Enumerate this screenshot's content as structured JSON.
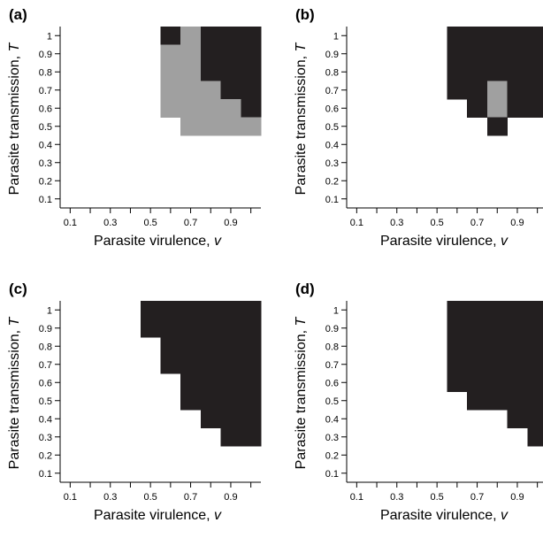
{
  "colors": {
    "white": "#ffffff",
    "gray": "#a0a0a0",
    "black": "#231f20",
    "axis": "#000000"
  },
  "chart_data": [
    {
      "type": "heatmap",
      "panel": "(a)",
      "xlabel": "Parasite virulence, ",
      "xlabel_var": "v",
      "ylabel": "Parasite transmission, ",
      "ylabel_var": "T",
      "x": [
        0.1,
        0.2,
        0.3,
        0.4,
        0.5,
        0.6,
        0.7,
        0.8,
        0.9,
        1.0
      ],
      "y": [
        0.1,
        0.2,
        0.3,
        0.4,
        0.5,
        0.6,
        0.7,
        0.8,
        0.9,
        1.0
      ],
      "x_tick_labels": [
        "0.1",
        "0.3",
        "0.5",
        "0.7",
        "0.9"
      ],
      "y_tick_labels": [
        "0.1",
        "0.2",
        "0.3",
        "0.4",
        "0.5",
        "0.6",
        "0.7",
        "0.8",
        "0.9",
        "1"
      ],
      "legend": "0 = white, 1 = gray, 2 = black",
      "grid_rows_top_to_bottom": [
        [
          0,
          0,
          0,
          0,
          0,
          2,
          1,
          2,
          2,
          2
        ],
        [
          0,
          0,
          0,
          0,
          0,
          1,
          1,
          2,
          2,
          2
        ],
        [
          0,
          0,
          0,
          0,
          0,
          1,
          1,
          2,
          2,
          2
        ],
        [
          0,
          0,
          0,
          0,
          0,
          1,
          1,
          1,
          2,
          2
        ],
        [
          0,
          0,
          0,
          0,
          0,
          1,
          1,
          1,
          1,
          2
        ],
        [
          0,
          0,
          0,
          0,
          0,
          0,
          1,
          1,
          1,
          1
        ],
        [
          0,
          0,
          0,
          0,
          0,
          0,
          0,
          0,
          0,
          0
        ],
        [
          0,
          0,
          0,
          0,
          0,
          0,
          0,
          0,
          0,
          0
        ],
        [
          0,
          0,
          0,
          0,
          0,
          0,
          0,
          0,
          0,
          0
        ],
        [
          0,
          0,
          0,
          0,
          0,
          0,
          0,
          0,
          0,
          0
        ]
      ]
    },
    {
      "type": "heatmap",
      "panel": "(b)",
      "xlabel": "Parasite virulence, ",
      "xlabel_var": "v",
      "ylabel": "Parasite transmission, ",
      "ylabel_var": "T",
      "x": [
        0.1,
        0.2,
        0.3,
        0.4,
        0.5,
        0.6,
        0.7,
        0.8,
        0.9,
        1.0
      ],
      "y": [
        0.1,
        0.2,
        0.3,
        0.4,
        0.5,
        0.6,
        0.7,
        0.8,
        0.9,
        1.0
      ],
      "x_tick_labels": [
        "0.1",
        "0.3",
        "0.5",
        "0.7",
        "0.9"
      ],
      "y_tick_labels": [
        "0.1",
        "0.2",
        "0.3",
        "0.4",
        "0.5",
        "0.6",
        "0.7",
        "0.8",
        "0.9",
        "1"
      ],
      "legend": "0 = white, 1 = gray, 2 = black",
      "grid_rows_top_to_bottom": [
        [
          0,
          0,
          0,
          0,
          0,
          2,
          2,
          2,
          2,
          2
        ],
        [
          0,
          0,
          0,
          0,
          0,
          2,
          2,
          2,
          2,
          2
        ],
        [
          0,
          0,
          0,
          0,
          0,
          2,
          2,
          2,
          2,
          2
        ],
        [
          0,
          0,
          0,
          0,
          0,
          2,
          2,
          1,
          2,
          2
        ],
        [
          0,
          0,
          0,
          0,
          0,
          0,
          2,
          1,
          2,
          2
        ],
        [
          0,
          0,
          0,
          0,
          0,
          0,
          0,
          2,
          0,
          0
        ],
        [
          0,
          0,
          0,
          0,
          0,
          0,
          0,
          0,
          0,
          0
        ],
        [
          0,
          0,
          0,
          0,
          0,
          0,
          0,
          0,
          0,
          0
        ],
        [
          0,
          0,
          0,
          0,
          0,
          0,
          0,
          0,
          0,
          0
        ],
        [
          0,
          0,
          0,
          0,
          0,
          0,
          0,
          0,
          0,
          0
        ]
      ]
    },
    {
      "type": "heatmap",
      "panel": "(c)",
      "xlabel": "Parasite virulence, ",
      "xlabel_var": "v",
      "ylabel": "Parasite transmission, ",
      "ylabel_var": "T",
      "x": [
        0.1,
        0.2,
        0.3,
        0.4,
        0.5,
        0.6,
        0.7,
        0.8,
        0.9,
        1.0
      ],
      "y": [
        0.1,
        0.2,
        0.3,
        0.4,
        0.5,
        0.6,
        0.7,
        0.8,
        0.9,
        1.0
      ],
      "x_tick_labels": [
        "0.1",
        "0.3",
        "0.5",
        "0.7",
        "0.9"
      ],
      "y_tick_labels": [
        "0.1",
        "0.2",
        "0.3",
        "0.4",
        "0.5",
        "0.6",
        "0.7",
        "0.8",
        "0.9",
        "1"
      ],
      "legend": "0 = white, 1 = gray, 2 = black",
      "grid_rows_top_to_bottom": [
        [
          0,
          0,
          0,
          0,
          2,
          2,
          2,
          2,
          2,
          2
        ],
        [
          0,
          0,
          0,
          0,
          2,
          2,
          2,
          2,
          2,
          2
        ],
        [
          0,
          0,
          0,
          0,
          0,
          2,
          2,
          2,
          2,
          2
        ],
        [
          0,
          0,
          0,
          0,
          0,
          2,
          2,
          2,
          2,
          2
        ],
        [
          0,
          0,
          0,
          0,
          0,
          0,
          2,
          2,
          2,
          2
        ],
        [
          0,
          0,
          0,
          0,
          0,
          0,
          2,
          2,
          2,
          2
        ],
        [
          0,
          0,
          0,
          0,
          0,
          0,
          0,
          2,
          2,
          2
        ],
        [
          0,
          0,
          0,
          0,
          0,
          0,
          0,
          0,
          2,
          2
        ],
        [
          0,
          0,
          0,
          0,
          0,
          0,
          0,
          0,
          0,
          0
        ],
        [
          0,
          0,
          0,
          0,
          0,
          0,
          0,
          0,
          0,
          0
        ]
      ]
    },
    {
      "type": "heatmap",
      "panel": "(d)",
      "xlabel": "Parasite virulence, ",
      "xlabel_var": "v",
      "ylabel": "Parasite transmission, ",
      "ylabel_var": "T",
      "x": [
        0.1,
        0.2,
        0.3,
        0.4,
        0.5,
        0.6,
        0.7,
        0.8,
        0.9,
        1.0
      ],
      "y": [
        0.1,
        0.2,
        0.3,
        0.4,
        0.5,
        0.6,
        0.7,
        0.8,
        0.9,
        1.0
      ],
      "x_tick_labels": [
        "0.1",
        "0.3",
        "0.5",
        "0.7",
        "0.9"
      ],
      "y_tick_labels": [
        "0.1",
        "0.2",
        "0.3",
        "0.4",
        "0.5",
        "0.6",
        "0.7",
        "0.8",
        "0.9",
        "1"
      ],
      "legend": "0 = white, 1 = gray, 2 = black",
      "grid_rows_top_to_bottom": [
        [
          0,
          0,
          0,
          0,
          0,
          2,
          2,
          2,
          2,
          2
        ],
        [
          0,
          0,
          0,
          0,
          0,
          2,
          2,
          2,
          2,
          2
        ],
        [
          0,
          0,
          0,
          0,
          0,
          2,
          2,
          2,
          2,
          2
        ],
        [
          0,
          0,
          0,
          0,
          0,
          2,
          2,
          2,
          2,
          2
        ],
        [
          0,
          0,
          0,
          0,
          0,
          2,
          2,
          2,
          2,
          2
        ],
        [
          0,
          0,
          0,
          0,
          0,
          0,
          2,
          2,
          2,
          2
        ],
        [
          0,
          0,
          0,
          0,
          0,
          0,
          0,
          0,
          2,
          2
        ],
        [
          0,
          0,
          0,
          0,
          0,
          0,
          0,
          0,
          0,
          2
        ],
        [
          0,
          0,
          0,
          0,
          0,
          0,
          0,
          0,
          0,
          0
        ],
        [
          0,
          0,
          0,
          0,
          0,
          0,
          0,
          0,
          0,
          0
        ]
      ]
    }
  ]
}
